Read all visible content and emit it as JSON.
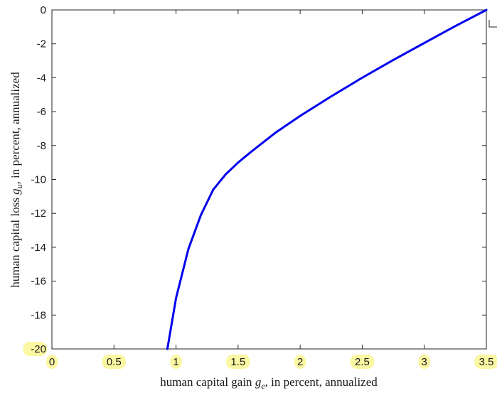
{
  "chart_data": {
    "type": "line",
    "title": "",
    "xlabel_parts": [
      "human capital gain ",
      "g",
      "e",
      ", in percent, annualized"
    ],
    "ylabel_parts": [
      "human capital loss ",
      "g",
      "u",
      ", in percent, annualized"
    ],
    "xlim": [
      0,
      3.5
    ],
    "ylim": [
      -20,
      0
    ],
    "xticks": [
      0,
      0.5,
      1,
      1.5,
      2,
      2.5,
      3,
      3.5
    ],
    "xtick_labels": [
      "0",
      "0.5",
      "1",
      "1.5",
      "2",
      "2.5",
      "3",
      "3.5"
    ],
    "yticks": [
      0,
      -2,
      -4,
      -6,
      -8,
      -10,
      -12,
      -14,
      -16,
      -18,
      -20
    ],
    "ytick_labels": [
      "0",
      "-2",
      "-4",
      "-6",
      "-8",
      "-10",
      "-12",
      "-14",
      "-16",
      "-18",
      "-20"
    ],
    "highlighted_ticks": {
      "x": [
        "0",
        "0.5",
        "1",
        "1.5",
        "2",
        "2.5",
        "3",
        "3.5"
      ],
      "y": [
        "-20"
      ]
    },
    "grid": false,
    "series": [
      {
        "color": "#0000ee",
        "x": [
          0.93,
          1.0,
          1.1,
          1.2,
          1.3,
          1.4,
          1.5,
          1.6,
          1.8,
          2.0,
          2.25,
          2.5,
          2.75,
          3.0,
          3.25,
          3.5
        ],
        "y": [
          -20,
          -17,
          -14.1,
          -12.1,
          -10.6,
          -9.7,
          -9.0,
          -8.4,
          -7.25,
          -6.25,
          -5.1,
          -4.0,
          -2.95,
          -1.95,
          -0.95,
          0.0
        ]
      }
    ]
  }
}
